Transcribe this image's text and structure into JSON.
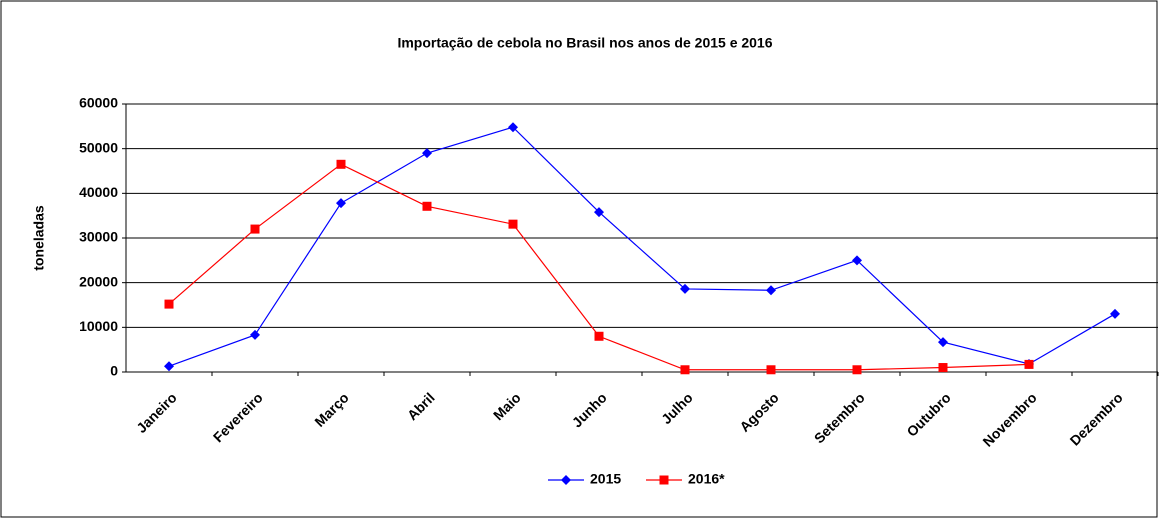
{
  "chart_data": {
    "type": "line",
    "title": "Importação de cebola no Brasil nos anos de 2015 e 2016",
    "y_label": "toneladas",
    "categories": [
      "Janeiro",
      "Fevereiro",
      "Março",
      "Abril",
      "Maio",
      "Junho",
      "Julho",
      "Agosto",
      "Setembro",
      "Outubro",
      "Novembro",
      "Dezembro"
    ],
    "series": [
      {
        "name": "2015",
        "color": "#0000ff",
        "marker": "diamond",
        "values": [
          1300,
          8300,
          37800,
          49000,
          54800,
          35800,
          18600,
          18300,
          25000,
          6700,
          1800,
          13000
        ]
      },
      {
        "name": "2016*",
        "color": "#ff0000",
        "marker": "square",
        "values": [
          15200,
          32000,
          46500,
          37100,
          33100,
          8000,
          500,
          500,
          500,
          1000,
          1700,
          null
        ]
      }
    ],
    "ylim": [
      0,
      60000
    ],
    "yticks": [
      0,
      10000,
      20000,
      30000,
      40000,
      50000,
      60000
    ],
    "grid": true,
    "legend": "bottom"
  }
}
